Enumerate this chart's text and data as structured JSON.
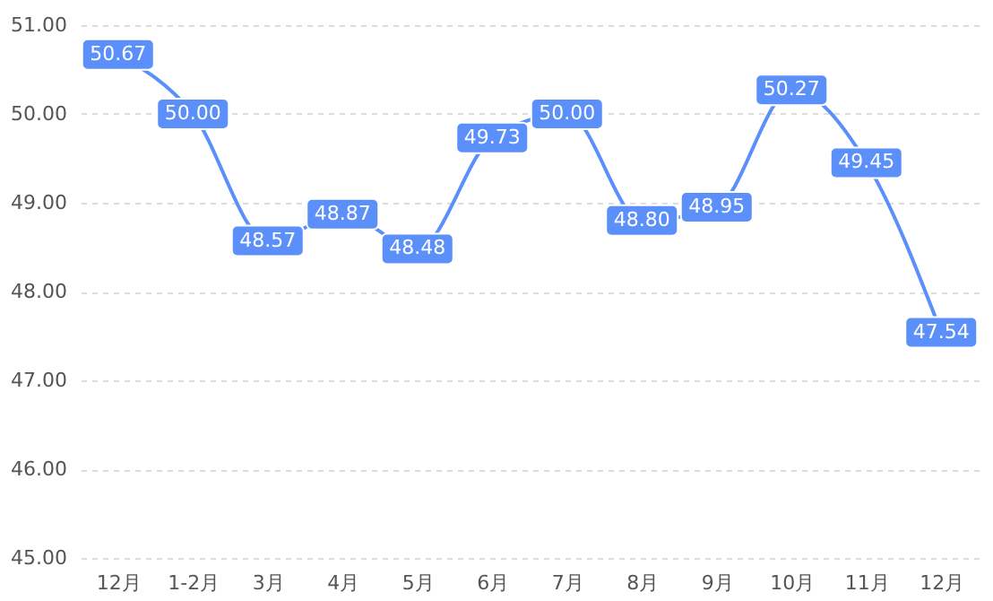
{
  "chart_data": {
    "type": "line",
    "categories": [
      "12月",
      "1-2月",
      "3月",
      "4月",
      "5月",
      "6月",
      "7月",
      "8月",
      "9月",
      "10月",
      "11月",
      "12月"
    ],
    "series": [
      {
        "color": "#5b8ff9",
        "values": [
          50.67,
          50.0,
          48.57,
          48.87,
          48.48,
          49.73,
          50.0,
          48.8,
          48.95,
          50.27,
          49.45,
          47.54
        ],
        "value_labels": [
          "50.67",
          "50.00",
          "48.57",
          "48.87",
          "48.48",
          "49.73",
          "50.00",
          "48.80",
          "48.95",
          "50.27",
          "49.45",
          "47.54"
        ]
      }
    ],
    "ylim": [
      45,
      51
    ],
    "yticks": [
      {
        "value": 45,
        "label": "45.00"
      },
      {
        "value": 46,
        "label": "46.00"
      },
      {
        "value": 47,
        "label": "47.00"
      },
      {
        "value": 48,
        "label": "48.00"
      },
      {
        "value": 49,
        "label": "49.00"
      },
      {
        "value": 50,
        "label": "50.00"
      },
      {
        "value": 51,
        "label": "51.00"
      }
    ],
    "grid": "y",
    "line_style": "solid",
    "marker": "square"
  }
}
